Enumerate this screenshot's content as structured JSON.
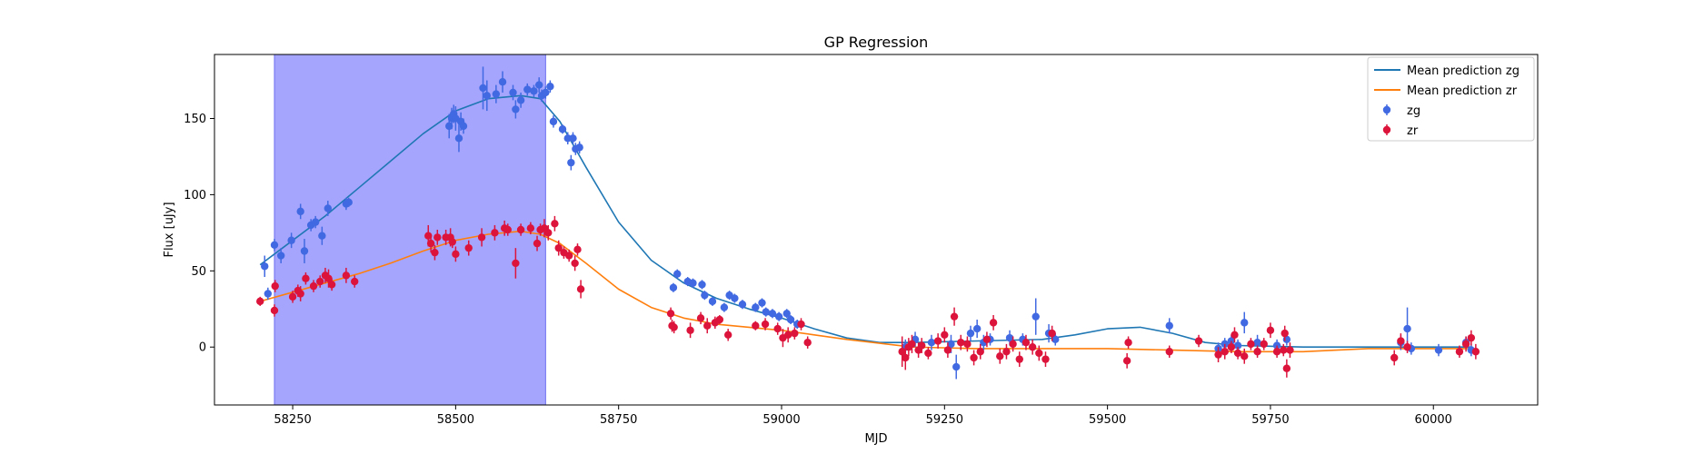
{
  "chart_data": {
    "type": "scatter",
    "title": "GP Regression",
    "xlabel": "MJD",
    "ylabel": "Flux [uJy]",
    "xlim": [
      58130,
      60160
    ],
    "ylim": [
      -38,
      192
    ],
    "x_ticks": [
      58250,
      58500,
      58750,
      59000,
      59250,
      59500,
      59750,
      60000
    ],
    "x_tick_labels": [
      "58250",
      "58500",
      "58750",
      "59000",
      "59250",
      "59500",
      "59750",
      "60000"
    ],
    "y_ticks": [
      0,
      50,
      100,
      150
    ],
    "y_tick_labels": [
      "0",
      "50",
      "100",
      "150"
    ],
    "grid": false,
    "legend_position": "top-right",
    "shaded_region": {
      "x_start": 58222,
      "x_end": 58638,
      "color": "#a5a5fd"
    },
    "lines": [
      {
        "name": "Mean prediction zg",
        "color": "#1f77b4",
        "x": [
          58200,
          58250,
          58300,
          58350,
          58400,
          58450,
          58500,
          58550,
          58600,
          58630,
          58660,
          58700,
          58750,
          58800,
          58850,
          58900,
          58950,
          59000,
          59050,
          59100,
          59150,
          59200,
          59300,
          59400,
          59450,
          59500,
          59550,
          59600,
          59650,
          59700,
          59800,
          59900,
          60000,
          60060
        ],
        "y": [
          54,
          70,
          86,
          104,
          122,
          140,
          155,
          163,
          165,
          163,
          148,
          118,
          82,
          57,
          42,
          32,
          25,
          19,
          12,
          6,
          3,
          3,
          4,
          5,
          8,
          12,
          13,
          9,
          3,
          1,
          0,
          0,
          0,
          0
        ]
      },
      {
        "name": "Mean prediction zr",
        "color": "#ff7f0e",
        "x": [
          58200,
          58250,
          58300,
          58350,
          58400,
          58450,
          58500,
          58550,
          58600,
          58630,
          58660,
          58700,
          58750,
          58800,
          58850,
          58900,
          58950,
          59000,
          59050,
          59100,
          59200,
          59300,
          59400,
          59500,
          59600,
          59700,
          59800,
          59900,
          60000,
          60060
        ],
        "y": [
          30,
          36,
          42,
          48,
          55,
          63,
          70,
          74,
          76,
          74,
          68,
          55,
          38,
          26,
          19,
          15,
          13,
          11,
          8,
          5,
          0,
          -1,
          -1,
          -1,
          -2,
          -3,
          -3,
          -1,
          -1,
          -1
        ]
      }
    ],
    "series": [
      {
        "name": "zg",
        "color": "#4169e1",
        "points": [
          [
            58207,
            53,
            7
          ],
          [
            58212,
            35,
            4
          ],
          [
            58222,
            67,
            4
          ],
          [
            58232,
            60,
            5
          ],
          [
            58248,
            70,
            5
          ],
          [
            58262,
            89,
            5
          ],
          [
            58268,
            63,
            8
          ],
          [
            58278,
            80,
            4
          ],
          [
            58285,
            82,
            4
          ],
          [
            58295,
            73,
            6
          ],
          [
            58304,
            91,
            5
          ],
          [
            58332,
            94,
            4
          ],
          [
            58336,
            95,
            3
          ],
          [
            58490,
            145,
            8
          ],
          [
            58494,
            150,
            7
          ],
          [
            58497,
            153,
            6
          ],
          [
            58500,
            150,
            8
          ],
          [
            58505,
            137,
            9
          ],
          [
            58508,
            148,
            6
          ],
          [
            58512,
            145,
            5
          ],
          [
            58542,
            170,
            14
          ],
          [
            58548,
            165,
            10
          ],
          [
            58562,
            166,
            6
          ],
          [
            58572,
            174,
            7
          ],
          [
            58588,
            167,
            5
          ],
          [
            58592,
            156,
            6
          ],
          [
            58600,
            162,
            5
          ],
          [
            58610,
            169,
            4
          ],
          [
            58620,
            168,
            4
          ],
          [
            58628,
            172,
            5
          ],
          [
            58632,
            165,
            4
          ],
          [
            58638,
            167,
            4
          ],
          [
            58645,
            171,
            4
          ],
          [
            58650,
            148,
            4
          ],
          [
            58664,
            143,
            3
          ],
          [
            58672,
            137,
            4
          ],
          [
            58677,
            121,
            5
          ],
          [
            58680,
            137,
            4
          ],
          [
            58684,
            130,
            4
          ],
          [
            58690,
            131,
            4
          ],
          [
            58834,
            39,
            3
          ],
          [
            58840,
            48,
            3
          ],
          [
            58856,
            43,
            3
          ],
          [
            58864,
            42,
            3
          ],
          [
            58878,
            41,
            3
          ],
          [
            58882,
            34,
            3
          ],
          [
            58894,
            30,
            3
          ],
          [
            58912,
            26,
            3
          ],
          [
            58920,
            34,
            3
          ],
          [
            58928,
            32,
            3
          ],
          [
            58940,
            28,
            3
          ],
          [
            58960,
            26,
            3
          ],
          [
            58970,
            29,
            3
          ],
          [
            58976,
            23,
            3
          ],
          [
            58986,
            22,
            3
          ],
          [
            58996,
            20,
            3
          ],
          [
            59008,
            22,
            3
          ],
          [
            59014,
            18,
            3
          ],
          [
            59024,
            15,
            3
          ],
          [
            59190,
            0,
            5
          ],
          [
            59205,
            5,
            5
          ],
          [
            59230,
            3,
            5
          ],
          [
            59260,
            2,
            6
          ],
          [
            59268,
            -13,
            8
          ],
          [
            59290,
            9,
            5
          ],
          [
            59300,
            12,
            6
          ],
          [
            59310,
            3,
            5
          ],
          [
            59320,
            5,
            4
          ],
          [
            59350,
            6,
            5
          ],
          [
            59370,
            5,
            4
          ],
          [
            59390,
            20,
            12
          ],
          [
            59410,
            9,
            6
          ],
          [
            59420,
            5,
            4
          ],
          [
            59595,
            14,
            5
          ],
          [
            59670,
            -1,
            4
          ],
          [
            59680,
            2,
            4
          ],
          [
            59690,
            4,
            4
          ],
          [
            59700,
            1,
            4
          ],
          [
            59710,
            16,
            7
          ],
          [
            59730,
            3,
            5
          ],
          [
            59760,
            1,
            4
          ],
          [
            59775,
            5,
            4
          ],
          [
            59950,
            3,
            5
          ],
          [
            59960,
            12,
            14
          ],
          [
            59966,
            -1,
            4
          ],
          [
            60008,
            -2,
            4
          ],
          [
            60050,
            3,
            4
          ],
          [
            60058,
            -2,
            4
          ]
        ]
      },
      {
        "name": "zr",
        "color": "#dc143c",
        "points": [
          [
            58200,
            30,
            3
          ],
          [
            58222,
            24,
            4
          ],
          [
            58223,
            40,
            4
          ],
          [
            58250,
            33,
            4
          ],
          [
            58258,
            37,
            4
          ],
          [
            58262,
            35,
            5
          ],
          [
            58270,
            45,
            4
          ],
          [
            58282,
            40,
            4
          ],
          [
            58292,
            43,
            4
          ],
          [
            58300,
            47,
            5
          ],
          [
            58305,
            45,
            6
          ],
          [
            58310,
            41,
            4
          ],
          [
            58332,
            47,
            5
          ],
          [
            58345,
            43,
            4
          ],
          [
            58458,
            73,
            7
          ],
          [
            58462,
            68,
            6
          ],
          [
            58468,
            62,
            5
          ],
          [
            58472,
            72,
            5
          ],
          [
            58485,
            72,
            5
          ],
          [
            58492,
            72,
            6
          ],
          [
            58495,
            69,
            4
          ],
          [
            58500,
            61,
            5
          ],
          [
            58520,
            65,
            5
          ],
          [
            58540,
            72,
            6
          ],
          [
            58560,
            75,
            5
          ],
          [
            58575,
            78,
            5
          ],
          [
            58580,
            77,
            4
          ],
          [
            58592,
            55,
            10
          ],
          [
            58600,
            77,
            4
          ],
          [
            58615,
            78,
            4
          ],
          [
            58625,
            68,
            5
          ],
          [
            58630,
            77,
            4
          ],
          [
            58636,
            78,
            6
          ],
          [
            58642,
            75,
            5
          ],
          [
            58652,
            81,
            5
          ],
          [
            58658,
            65,
            5
          ],
          [
            58666,
            62,
            4
          ],
          [
            58674,
            60,
            4
          ],
          [
            58683,
            55,
            5
          ],
          [
            58687,
            64,
            4
          ],
          [
            58692,
            38,
            6
          ],
          [
            58830,
            22,
            4
          ],
          [
            58832,
            14,
            4
          ],
          [
            58835,
            13,
            4
          ],
          [
            58860,
            11,
            5
          ],
          [
            58876,
            19,
            4
          ],
          [
            58886,
            14,
            5
          ],
          [
            58898,
            16,
            4
          ],
          [
            58905,
            18,
            3
          ],
          [
            58918,
            8,
            4
          ],
          [
            58960,
            14,
            3
          ],
          [
            58975,
            15,
            4
          ],
          [
            58994,
            12,
            4
          ],
          [
            59002,
            6,
            6
          ],
          [
            59010,
            8,
            5
          ],
          [
            59020,
            9,
            4
          ],
          [
            59030,
            15,
            4
          ],
          [
            59040,
            3,
            4
          ],
          [
            59185,
            -3,
            10
          ],
          [
            59190,
            -7,
            8
          ],
          [
            59195,
            0,
            6
          ],
          [
            59200,
            2,
            6
          ],
          [
            59210,
            -2,
            5
          ],
          [
            59215,
            1,
            5
          ],
          [
            59225,
            -4,
            4
          ],
          [
            59240,
            4,
            5
          ],
          [
            59250,
            8,
            5
          ],
          [
            59255,
            -2,
            5
          ],
          [
            59265,
            20,
            6
          ],
          [
            59275,
            3,
            5
          ],
          [
            59285,
            2,
            5
          ],
          [
            59295,
            -7,
            5
          ],
          [
            59305,
            -3,
            5
          ],
          [
            59315,
            5,
            5
          ],
          [
            59325,
            16,
            5
          ],
          [
            59335,
            -6,
            5
          ],
          [
            59345,
            -3,
            5
          ],
          [
            59355,
            2,
            5
          ],
          [
            59365,
            -8,
            5
          ],
          [
            59375,
            3,
            5
          ],
          [
            59385,
            0,
            5
          ],
          [
            59395,
            -4,
            5
          ],
          [
            59405,
            -8,
            5
          ],
          [
            59415,
            9,
            5
          ],
          [
            59530,
            -9,
            5
          ],
          [
            59532,
            3,
            4
          ],
          [
            59595,
            -3,
            4
          ],
          [
            59640,
            4,
            4
          ],
          [
            59670,
            -5,
            5
          ],
          [
            59680,
            -3,
            5
          ],
          [
            59690,
            0,
            4
          ],
          [
            59695,
            8,
            5
          ],
          [
            59700,
            -4,
            4
          ],
          [
            59710,
            -6,
            5
          ],
          [
            59720,
            2,
            4
          ],
          [
            59730,
            -3,
            4
          ],
          [
            59740,
            2,
            4
          ],
          [
            59750,
            11,
            5
          ],
          [
            59760,
            -3,
            4
          ],
          [
            59770,
            -2,
            4
          ],
          [
            59772,
            9,
            5
          ],
          [
            59775,
            -14,
            6
          ],
          [
            59780,
            -2,
            5
          ],
          [
            59940,
            -7,
            5
          ],
          [
            59950,
            4,
            5
          ],
          [
            59960,
            0,
            4
          ],
          [
            60040,
            -3,
            4
          ],
          [
            60050,
            2,
            5
          ],
          [
            60058,
            6,
            5
          ],
          [
            60065,
            -3,
            5
          ]
        ]
      }
    ]
  }
}
